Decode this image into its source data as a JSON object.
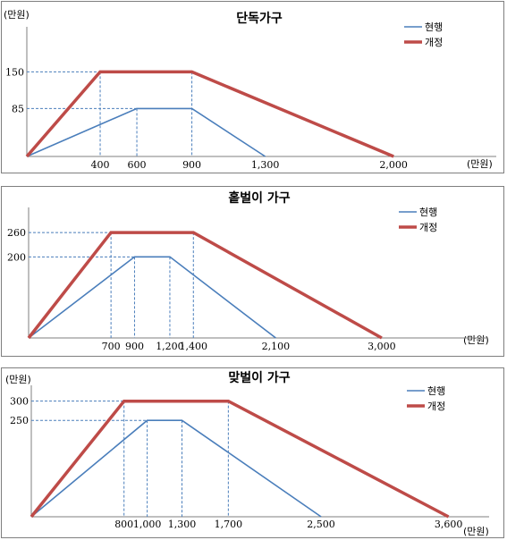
{
  "chart_data": [
    {
      "type": "line",
      "title": "단독가구",
      "y_unit": "(만원)",
      "x_unit": "(만원)",
      "legend_position": "top-right",
      "series": [
        {
          "name": "현행",
          "color": "#4a7ebb",
          "x": [
            0,
            600,
            900,
            1300
          ],
          "y": [
            0,
            85,
            85,
            0
          ]
        },
        {
          "name": "개정",
          "color": "#be4b48",
          "x": [
            0,
            400,
            900,
            2000
          ],
          "y": [
            0,
            150,
            150,
            0
          ]
        }
      ],
      "x_ticks": [
        {
          "value": 400,
          "label": "400"
        },
        {
          "value": 600,
          "label": "600"
        },
        {
          "value": 900,
          "label": "900"
        },
        {
          "value": 1300,
          "label": "1,300"
        },
        {
          "value": 2000,
          "label": "2,000"
        }
      ],
      "y_ticks": [
        {
          "value": 150,
          "label": "150"
        },
        {
          "value": 85,
          "label": "85"
        }
      ],
      "guides": [
        {
          "x": 400,
          "y": 150
        },
        {
          "x": 600,
          "y": 85
        },
        {
          "x": 900,
          "y": 150
        }
      ],
      "xlim": [
        0,
        2560
      ],
      "ylim": [
        0,
        230
      ]
    },
    {
      "type": "line",
      "title": "홑벌이 가구",
      "y_unit": "",
      "x_unit": "(만원)",
      "legend_position": "top-right",
      "series": [
        {
          "name": "현행",
          "color": "#4a7ebb",
          "x": [
            0,
            900,
            1200,
            2100
          ],
          "y": [
            0,
            200,
            200,
            0
          ]
        },
        {
          "name": "개정",
          "color": "#be4b48",
          "x": [
            0,
            700,
            1400,
            3000
          ],
          "y": [
            0,
            260,
            260,
            0
          ]
        }
      ],
      "x_ticks": [
        {
          "value": 700,
          "label": "700"
        },
        {
          "value": 900,
          "label": "900"
        },
        {
          "value": 1200,
          "label": "1,200"
        },
        {
          "value": 1400,
          "label": "1,400"
        },
        {
          "value": 2100,
          "label": "2,100"
        },
        {
          "value": 3000,
          "label": "3,000"
        }
      ],
      "y_ticks": [
        {
          "value": 260,
          "label": "260"
        },
        {
          "value": 200,
          "label": "200"
        }
      ],
      "guides": [
        {
          "x": 700,
          "y": 260
        },
        {
          "x": 900,
          "y": 200
        },
        {
          "x": 1200,
          "y": 200
        },
        {
          "x": 1400,
          "y": 260
        }
      ],
      "xlim": [
        0,
        3905
      ],
      "ylim": [
        0,
        322
      ]
    },
    {
      "type": "line",
      "title": "맞벌이 가구",
      "y_unit": "(만원)",
      "x_unit": "(만원)",
      "legend_position": "top-right",
      "series": [
        {
          "name": "현행",
          "color": "#4a7ebb",
          "x": [
            0,
            1000,
            1300,
            2500
          ],
          "y": [
            0,
            250,
            250,
            0
          ]
        },
        {
          "name": "개정",
          "color": "#be4b48",
          "x": [
            0,
            800,
            1700,
            3600
          ],
          "y": [
            0,
            300,
            300,
            0
          ]
        }
      ],
      "x_ticks": [
        {
          "value": 800,
          "label": "800"
        },
        {
          "value": 1000,
          "label": "1,000"
        },
        {
          "value": 1300,
          "label": "1,300"
        },
        {
          "value": 1700,
          "label": "1,700"
        },
        {
          "value": 2500,
          "label": "2,500"
        },
        {
          "value": 3600,
          "label": "3,600"
        }
      ],
      "y_ticks": [
        {
          "value": 300,
          "label": "300"
        },
        {
          "value": 250,
          "label": "250"
        }
      ],
      "guides": [
        {
          "x": 800,
          "y": 300
        },
        {
          "x": 1000,
          "y": 250
        },
        {
          "x": 1300,
          "y": 250
        },
        {
          "x": 1700,
          "y": 300
        }
      ],
      "xlim": [
        0,
        3950
      ],
      "ylim": [
        0,
        341
      ]
    }
  ]
}
